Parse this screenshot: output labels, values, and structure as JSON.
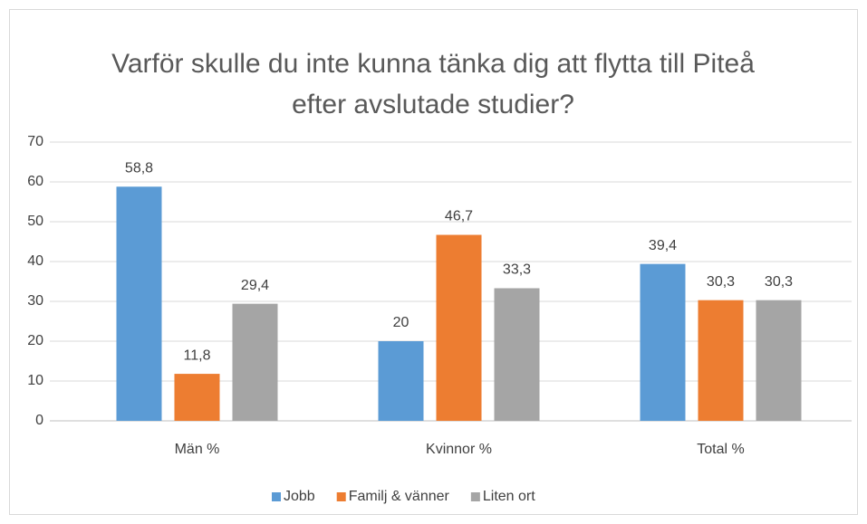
{
  "chart_data": {
    "type": "bar",
    "title": "Varför skulle du inte kunna tänka dig att flytta till Piteå efter avslutade studier?",
    "categories": [
      "Män %",
      "Kvinnor %",
      "Total %"
    ],
    "series": [
      {
        "name": "Jobb",
        "color": "#5b9bd5",
        "values": [
          58.8,
          20,
          39.4
        ],
        "value_labels": [
          "58,8",
          "20",
          "39,4"
        ]
      },
      {
        "name": "Familj & vänner",
        "color": "#ed7d31",
        "values": [
          11.8,
          46.7,
          30.3
        ],
        "value_labels": [
          "11,8",
          "46,7",
          "30,3"
        ]
      },
      {
        "name": "Liten ort",
        "color": "#a5a5a5",
        "values": [
          29.4,
          33.3,
          30.3
        ],
        "value_labels": [
          "29,4",
          "33,3",
          "30,3"
        ]
      }
    ],
    "ylim": [
      0,
      70
    ],
    "yticks": [
      0,
      10,
      20,
      30,
      40,
      50,
      60,
      70
    ],
    "grid": true,
    "legend": "bottom"
  }
}
